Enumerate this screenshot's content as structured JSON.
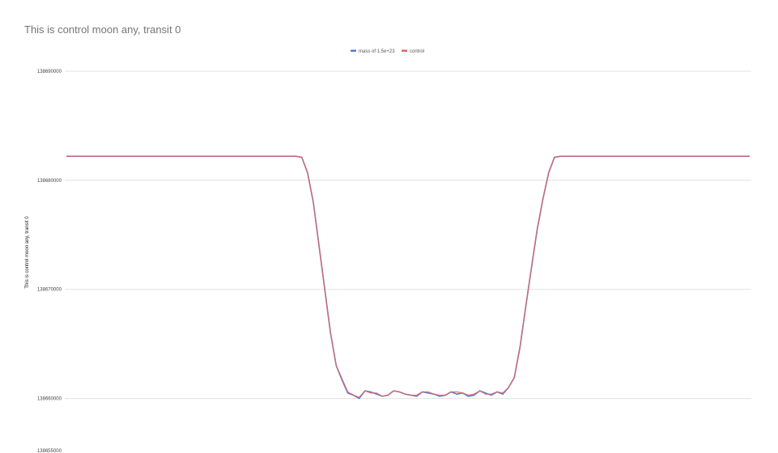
{
  "chart_data": {
    "type": "line",
    "title": "This is control moon any, transit 0",
    "ylabel": "This is control moon any, transit 0",
    "xlabel": "",
    "ylim": [
      138655000,
      138690000
    ],
    "yticks": [
      138690000,
      138680000,
      138670000,
      138660000,
      138655000
    ],
    "ytick_labels": [
      "138690000",
      "138680000",
      "138670000",
      "138660000",
      "138655000"
    ],
    "grid": true,
    "legend_position": "top",
    "series": [
      {
        "name": "mass of 1.5e+23",
        "color": "#4a7fe0",
        "values": [
          138682200,
          138682200,
          138682200,
          138682200,
          138682200,
          138682200,
          138682200,
          138682200,
          138682200,
          138682200,
          138682200,
          138682200,
          138682200,
          138682200,
          138682200,
          138682200,
          138682200,
          138682200,
          138682200,
          138682200,
          138682200,
          138682200,
          138682200,
          138682200,
          138682200,
          138682200,
          138682200,
          138682200,
          138682200,
          138682200,
          138682200,
          138682200,
          138682200,
          138682200,
          138682200,
          138682200,
          138682200,
          138682200,
          138682200,
          138682200,
          138682200,
          138682100,
          138680700,
          138678000,
          138674000,
          138670000,
          138666000,
          138663000,
          138661700,
          138660500,
          138660300,
          138660000,
          138660700,
          138660600,
          138660400,
          138660200,
          138660300,
          138660700,
          138660600,
          138660400,
          138660300,
          138660200,
          138660600,
          138660500,
          138660400,
          138660200,
          138660300,
          138660600,
          138660400,
          138660500,
          138660200,
          138660300,
          138660700,
          138660500,
          138660300,
          138660600,
          138660400,
          138661000,
          138661900,
          138664700,
          138668400,
          138672000,
          138675500,
          138678300,
          138680700,
          138682100,
          138682200,
          138682200,
          138682200,
          138682200,
          138682200,
          138682200,
          138682200,
          138682200,
          138682200,
          138682200,
          138682200,
          138682200,
          138682200,
          138682200,
          138682200,
          138682200,
          138682200,
          138682200,
          138682200,
          138682200,
          138682200,
          138682200,
          138682200,
          138682200,
          138682200,
          138682200,
          138682200,
          138682200,
          138682200,
          138682200,
          138682200,
          138682200,
          138682200,
          138682200
        ]
      },
      {
        "name": "control",
        "color": "#e06666",
        "values": [
          138682200,
          138682200,
          138682200,
          138682200,
          138682200,
          138682200,
          138682200,
          138682200,
          138682200,
          138682200,
          138682200,
          138682200,
          138682200,
          138682200,
          138682200,
          138682200,
          138682200,
          138682200,
          138682200,
          138682200,
          138682200,
          138682200,
          138682200,
          138682200,
          138682200,
          138682200,
          138682200,
          138682200,
          138682200,
          138682200,
          138682200,
          138682200,
          138682200,
          138682200,
          138682200,
          138682200,
          138682200,
          138682200,
          138682200,
          138682200,
          138682200,
          138682100,
          138680700,
          138678000,
          138674000,
          138670000,
          138666000,
          138663000,
          138661800,
          138660600,
          138660300,
          138660100,
          138660700,
          138660500,
          138660500,
          138660200,
          138660300,
          138660700,
          138660600,
          138660400,
          138660300,
          138660300,
          138660600,
          138660600,
          138660400,
          138660300,
          138660300,
          138660600,
          138660600,
          138660500,
          138660300,
          138660400,
          138660700,
          138660400,
          138660400,
          138660600,
          138660500,
          138661000,
          138661900,
          138664700,
          138668400,
          138672000,
          138675500,
          138678300,
          138680700,
          138682100,
          138682200,
          138682200,
          138682200,
          138682200,
          138682200,
          138682200,
          138682200,
          138682200,
          138682200,
          138682200,
          138682200,
          138682200,
          138682200,
          138682200,
          138682200,
          138682200,
          138682200,
          138682200,
          138682200,
          138682200,
          138682200,
          138682200,
          138682200,
          138682200,
          138682200,
          138682200,
          138682200,
          138682200,
          138682200,
          138682200,
          138682200,
          138682200,
          138682200,
          138682200
        ]
      }
    ]
  }
}
